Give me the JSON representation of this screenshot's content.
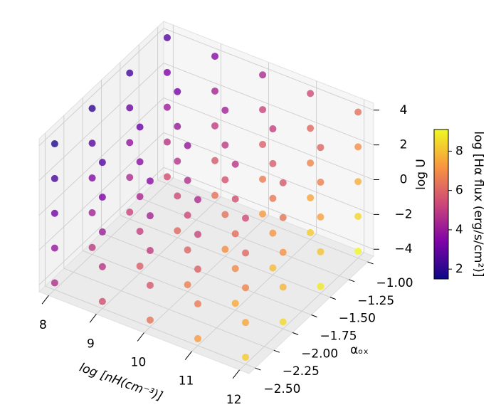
{
  "chart_data": {
    "type": "scatter3d",
    "xlabel": "log  [nH(cm⁻³)]",
    "ylabel": "αₒₓ",
    "zlabel": "log U",
    "colorbar_label": "log [Hα flux (erg/s/cm²)]",
    "colormap": "plasma",
    "xlim": [
      7.8,
      12.2
    ],
    "ylim": [
      -2.58,
      -0.92
    ],
    "zlim": [
      -4.4,
      4.4
    ],
    "clim": [
      1.5,
      9.1
    ],
    "xticks": [
      8,
      9,
      10,
      11,
      12
    ],
    "yticks": [
      {
        "value": -1.0,
        "label": "−1.00"
      },
      {
        "value": -1.25,
        "label": "−1.25"
      },
      {
        "value": -1.5,
        "label": "−1.50"
      },
      {
        "value": -1.75,
        "label": "−1.75"
      },
      {
        "value": -2.0,
        "label": "−2.00"
      },
      {
        "value": -2.25,
        "label": "−2.25"
      },
      {
        "value": -2.5,
        "label": "−2.50"
      }
    ],
    "zticks": [
      4,
      2,
      0,
      {
        "value": -2,
        "label": "−2"
      },
      {
        "value": -4,
        "label": "−4"
      }
    ],
    "cticks": [
      2,
      4,
      6,
      8
    ],
    "grid": true,
    "x": [
      8,
      8,
      8,
      8,
      8,
      8,
      8,
      8,
      8,
      8,
      8,
      8,
      8,
      8,
      8,
      8,
      8,
      8,
      8,
      8,
      9,
      9,
      9,
      9,
      9,
      9,
      9,
      9,
      9,
      9,
      9,
      9,
      9,
      9,
      9,
      9,
      9,
      9,
      9,
      9,
      10,
      10,
      10,
      10,
      10,
      10,
      10,
      10,
      10,
      10,
      10,
      10,
      10,
      10,
      10,
      10,
      10,
      10,
      10,
      10,
      11,
      11,
      11,
      11,
      11,
      11,
      11,
      11,
      11,
      11,
      11,
      11,
      11,
      11,
      11,
      11,
      11,
      11,
      11,
      11,
      12,
      12,
      12,
      12,
      12,
      12,
      12,
      12,
      12,
      12,
      12,
      12,
      12,
      12,
      12,
      12,
      12,
      12,
      12,
      12
    ],
    "y": [
      -2.5,
      -2.5,
      -2.5,
      -2.5,
      -2.5,
      -2,
      -2,
      -2,
      -2,
      -2,
      -1.5,
      -1.5,
      -1.5,
      -1.5,
      -1.5,
      -1,
      -1,
      -1,
      -1,
      -1,
      -2.5,
      -2.5,
      -2.5,
      -2.5,
      -2.5,
      -2,
      -2,
      -2,
      -2,
      -2,
      -1.5,
      -1.5,
      -1.5,
      -1.5,
      -1.5,
      -1,
      -1,
      -1,
      -1,
      -1,
      -2.5,
      -2.5,
      -2.5,
      -2.5,
      -2.5,
      -2,
      -2,
      -2,
      -2,
      -2,
      -1.5,
      -1.5,
      -1.5,
      -1.5,
      -1.5,
      -1,
      -1,
      -1,
      -1,
      -1,
      -2.5,
      -2.5,
      -2.5,
      -2.5,
      -2.5,
      -2,
      -2,
      -2,
      -2,
      -2,
      -1.5,
      -1.5,
      -1.5,
      -1.5,
      -1.5,
      -1,
      -1,
      -1,
      -1,
      -1,
      -2.5,
      -2.5,
      -2.5,
      -2.5,
      -2.5,
      -2,
      -2,
      -2,
      -2,
      -2,
      -1.5,
      -1.5,
      -1.5,
      -1.5,
      -1.5,
      -1,
      -1,
      -1,
      -1,
      -1
    ],
    "z": [
      -4,
      -2,
      0,
      2,
      4,
      -4,
      -2,
      0,
      2,
      4,
      -4,
      -2,
      0,
      2,
      4,
      -4,
      -2,
      0,
      2,
      4,
      -4,
      -2,
      0,
      2,
      4,
      -4,
      -2,
      0,
      2,
      4,
      -4,
      -2,
      0,
      2,
      4,
      -4,
      -2,
      0,
      2,
      4,
      -4,
      -2,
      0,
      2,
      4,
      -4,
      -2,
      0,
      2,
      4,
      -4,
      -2,
      0,
      2,
      4,
      -4,
      -2,
      0,
      2,
      4,
      -4,
      -2,
      0,
      2,
      4,
      -4,
      -2,
      0,
      2,
      4,
      -4,
      -2,
      0,
      2,
      4,
      -4,
      -2,
      0,
      2,
      4,
      -4,
      -2,
      0,
      2,
      4,
      -4,
      -2,
      0,
      2,
      4,
      -4,
      -2,
      0,
      2,
      4,
      -4,
      -2,
      0,
      2,
      4
    ],
    "values": [
      4.6,
      3.9,
      3.2,
      2.5,
      1.8,
      4.9,
      4.2,
      3.5,
      2.8,
      2.1,
      5.2,
      4.5,
      3.8,
      3.1,
      2.4,
      5.5,
      4.8,
      4.1,
      3.4,
      2.7,
      5.5,
      4.8,
      4.1,
      3.4,
      2.7,
      5.8,
      5.1,
      4.4,
      3.7,
      3.0,
      6.1,
      5.4,
      4.7,
      4.0,
      3.3,
      6.4,
      5.7,
      5.0,
      4.3,
      3.6,
      6.4,
      5.7,
      5.0,
      4.3,
      3.6,
      6.7,
      6.0,
      5.3,
      4.6,
      3.9,
      7.0,
      6.3,
      5.6,
      4.9,
      4.2,
      7.3,
      6.6,
      5.9,
      5.2,
      4.5,
      7.3,
      6.6,
      5.9,
      5.2,
      4.5,
      7.6,
      6.9,
      6.2,
      5.5,
      4.8,
      7.9,
      7.2,
      6.5,
      5.8,
      5.1,
      8.2,
      7.5,
      6.8,
      6.1,
      5.4,
      8.2,
      7.5,
      6.8,
      6.1,
      5.4,
      8.5,
      7.8,
      7.1,
      6.4,
      5.7,
      8.8,
      8.1,
      7.4,
      6.7,
      6.0,
      9.1,
      8.4,
      7.7,
      7.0,
      6.3
    ]
  }
}
